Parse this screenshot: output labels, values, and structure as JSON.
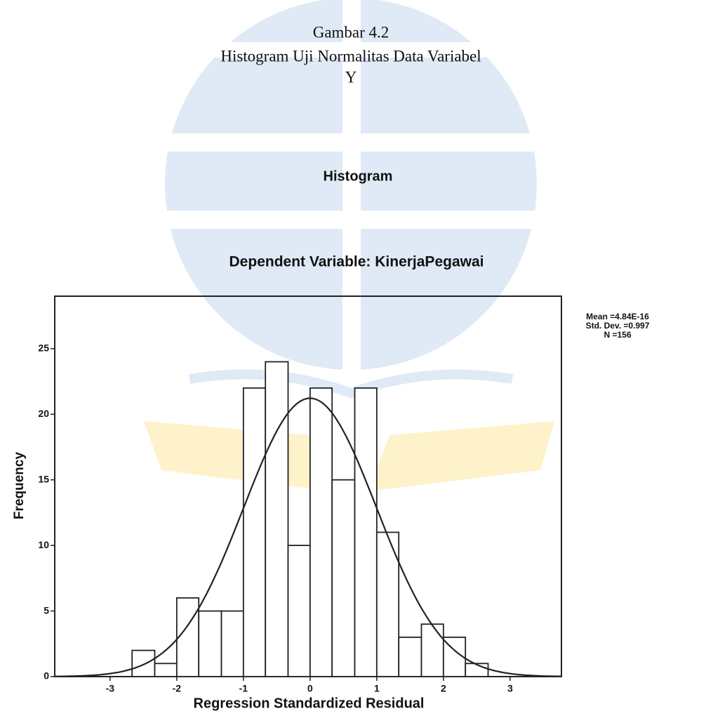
{
  "chart_data": {
    "type": "histogram",
    "caption": [
      "Gambar 4.2",
      "Histogram Uji Normalitas Data Variabel",
      "Y"
    ],
    "title": "Histogram",
    "subtitle": "Dependent Variable: KinerjaPegawai",
    "xlabel": "Regression Standardized Residual",
    "ylabel": "Frequency",
    "bins": [
      -2.67,
      -2.33,
      -2,
      -1.67,
      -1.33,
      -1,
      -0.67,
      -0.33,
      0,
      0.33,
      0.67,
      1,
      1.33,
      1.67,
      2,
      2.33,
      2.67
    ],
    "values": [
      2,
      1,
      6,
      5,
      5,
      22,
      24,
      10,
      22,
      15,
      22,
      11,
      3,
      4,
      3,
      1
    ],
    "color": "#ffffff",
    "xlim": [
      -3.83,
      3.77
    ],
    "ylim": [
      0,
      29
    ],
    "xticks": [
      -3,
      -2,
      -1,
      0,
      1,
      2,
      3
    ],
    "yticks": [
      0,
      5,
      10,
      15,
      20,
      25
    ],
    "stats": {
      "mean": {
        "value": 4.84e-16,
        "label": "Mean =4.84E-16"
      },
      "std_dev": {
        "value": 0.997,
        "label": "Std. Dev. =0.997"
      },
      "n": {
        "value": 156,
        "label": "N =156"
      }
    },
    "normal_curve": true
  }
}
